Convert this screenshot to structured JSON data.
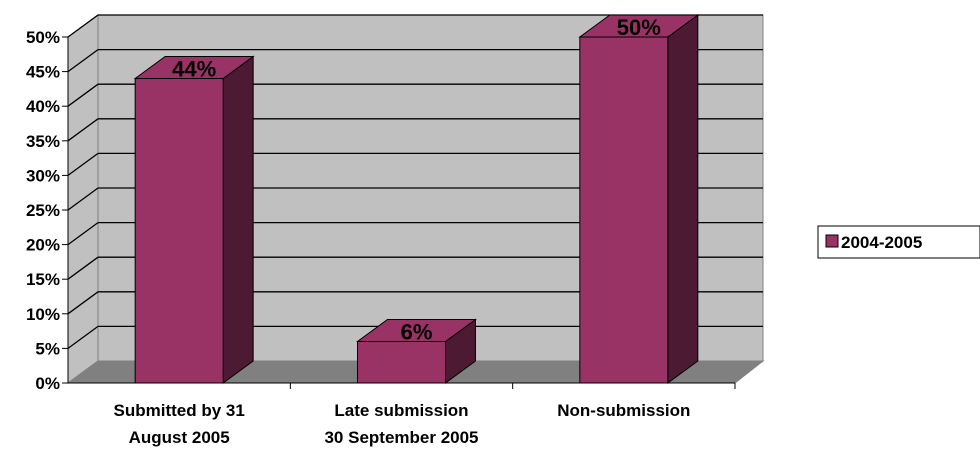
{
  "chart_data": {
    "type": "bar",
    "style": "3d-column",
    "categories": [
      [
        "Submitted by 31",
        "August 2005"
      ],
      [
        "Late submission",
        "30 September 2005"
      ],
      [
        "Non-submission"
      ]
    ],
    "series": [
      {
        "name": "2004-2005",
        "values": [
          44,
          6,
          50
        ],
        "color": "#993366",
        "side_color": "#4d1a33"
      }
    ],
    "data_labels": [
      "44%",
      "6%",
      "50%"
    ],
    "y_ticks": [
      "0%",
      "5%",
      "10%",
      "15%",
      "20%",
      "25%",
      "30%",
      "35%",
      "40%",
      "45%",
      "50%"
    ],
    "ylim": [
      0,
      50
    ],
    "y_step": 5,
    "grid": true,
    "legend_position": "right",
    "wall_color": "#c0c0c0",
    "floor_color": "#808080"
  }
}
